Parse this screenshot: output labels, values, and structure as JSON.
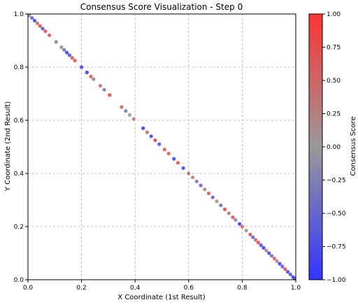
{
  "chart_data": {
    "type": "scatter",
    "title": "Consensus Score Visualization - Step 0",
    "xlabel": "X Coordinate (1st Result)",
    "ylabel": "Y Coordinate (2nd Result)",
    "xlim": [
      0.0,
      1.0
    ],
    "ylim": [
      0.0,
      1.0
    ],
    "xticks": [
      "0.0",
      "0.2",
      "0.4",
      "0.6",
      "0.8",
      "1.0"
    ],
    "yticks": [
      "0.0",
      "0.2",
      "0.4",
      "0.6",
      "0.8",
      "1.0"
    ],
    "grid": true,
    "colorbar": {
      "label": "Consensus Score",
      "range": [
        -1.0,
        1.0
      ],
      "ticks": [
        "1.00",
        "0.75",
        "0.50",
        "0.25",
        "0.00",
        "−0.25",
        "−0.50",
        "−0.75",
        "−1.00"
      ],
      "colors": {
        "low": "#3333ff",
        "mid": "#999999",
        "high": "#ff3333"
      }
    },
    "points": [
      {
        "x": 0.005,
        "y": 0.995,
        "score": 0.2
      },
      {
        "x": 0.015,
        "y": 0.985,
        "score": -0.6
      },
      {
        "x": 0.025,
        "y": 0.975,
        "score": -0.8
      },
      {
        "x": 0.035,
        "y": 0.965,
        "score": 0.5
      },
      {
        "x": 0.045,
        "y": 0.955,
        "score": 0.7
      },
      {
        "x": 0.055,
        "y": 0.945,
        "score": -0.7
      },
      {
        "x": 0.065,
        "y": 0.935,
        "score": 0.8
      },
      {
        "x": 0.08,
        "y": 0.92,
        "score": 0.6
      },
      {
        "x": 0.105,
        "y": 0.895,
        "score": -0.2
      },
      {
        "x": 0.125,
        "y": 0.875,
        "score": 0.1
      },
      {
        "x": 0.135,
        "y": 0.865,
        "score": -0.4
      },
      {
        "x": 0.145,
        "y": 0.855,
        "score": -0.9
      },
      {
        "x": 0.155,
        "y": 0.845,
        "score": -0.7
      },
      {
        "x": 0.165,
        "y": 0.835,
        "score": 0.6
      },
      {
        "x": 0.175,
        "y": 0.825,
        "score": 0.7
      },
      {
        "x": 0.2,
        "y": 0.8,
        "score": -0.8
      },
      {
        "x": 0.22,
        "y": 0.78,
        "score": -0.9
      },
      {
        "x": 0.235,
        "y": 0.765,
        "score": 0.6
      },
      {
        "x": 0.245,
        "y": 0.755,
        "score": -0.2
      },
      {
        "x": 0.27,
        "y": 0.73,
        "score": 0.4
      },
      {
        "x": 0.285,
        "y": 0.715,
        "score": -0.3
      },
      {
        "x": 0.305,
        "y": 0.695,
        "score": 0.8
      },
      {
        "x": 0.35,
        "y": 0.65,
        "score": 0.5
      },
      {
        "x": 0.365,
        "y": 0.635,
        "score": -0.3
      },
      {
        "x": 0.38,
        "y": 0.62,
        "score": 0.0
      },
      {
        "x": 0.395,
        "y": 0.605,
        "score": 0.3
      },
      {
        "x": 0.43,
        "y": 0.57,
        "score": -0.9
      },
      {
        "x": 0.445,
        "y": 0.555,
        "score": 0.4
      },
      {
        "x": 0.46,
        "y": 0.54,
        "score": -0.8
      },
      {
        "x": 0.475,
        "y": 0.525,
        "score": 0.8
      },
      {
        "x": 0.49,
        "y": 0.51,
        "score": -0.7
      },
      {
        "x": 0.51,
        "y": 0.49,
        "score": 0.7
      },
      {
        "x": 0.525,
        "y": 0.475,
        "score": 0.6
      },
      {
        "x": 0.545,
        "y": 0.455,
        "score": -0.8
      },
      {
        "x": 0.56,
        "y": 0.44,
        "score": 0.7
      },
      {
        "x": 0.58,
        "y": 0.42,
        "score": -0.8
      },
      {
        "x": 0.6,
        "y": 0.4,
        "score": 0.4
      },
      {
        "x": 0.615,
        "y": 0.385,
        "score": 0.3
      },
      {
        "x": 0.63,
        "y": 0.37,
        "score": -0.3
      },
      {
        "x": 0.645,
        "y": 0.355,
        "score": -0.5
      },
      {
        "x": 0.66,
        "y": 0.34,
        "score": 0.2
      },
      {
        "x": 0.675,
        "y": 0.325,
        "score": 0.6
      },
      {
        "x": 0.69,
        "y": 0.31,
        "score": -0.6
      },
      {
        "x": 0.705,
        "y": 0.295,
        "score": 0.1
      },
      {
        "x": 0.72,
        "y": 0.28,
        "score": -0.4
      },
      {
        "x": 0.735,
        "y": 0.265,
        "score": 0.8
      },
      {
        "x": 0.75,
        "y": 0.25,
        "score": 0.3
      },
      {
        "x": 0.765,
        "y": 0.235,
        "score": 0.7
      },
      {
        "x": 0.775,
        "y": 0.225,
        "score": -0.2
      },
      {
        "x": 0.79,
        "y": 0.21,
        "score": -0.9
      },
      {
        "x": 0.8,
        "y": 0.2,
        "score": 0.5
      },
      {
        "x": 0.815,
        "y": 0.185,
        "score": 0.0
      },
      {
        "x": 0.83,
        "y": 0.17,
        "score": 0.7
      },
      {
        "x": 0.84,
        "y": 0.16,
        "score": -0.5
      },
      {
        "x": 0.85,
        "y": 0.15,
        "score": 0.6
      },
      {
        "x": 0.86,
        "y": 0.14,
        "score": 0.8
      },
      {
        "x": 0.87,
        "y": 0.13,
        "score": -0.7
      },
      {
        "x": 0.88,
        "y": 0.12,
        "score": -0.9
      },
      {
        "x": 0.89,
        "y": 0.11,
        "score": 0.3
      },
      {
        "x": 0.9,
        "y": 0.1,
        "score": -0.8
      },
      {
        "x": 0.91,
        "y": 0.09,
        "score": -0.4
      },
      {
        "x": 0.92,
        "y": 0.08,
        "score": 0.5
      },
      {
        "x": 0.93,
        "y": 0.07,
        "score": 0.2
      },
      {
        "x": 0.94,
        "y": 0.06,
        "score": -0.9
      },
      {
        "x": 0.95,
        "y": 0.05,
        "score": -0.6
      },
      {
        "x": 0.96,
        "y": 0.04,
        "score": 0.7
      },
      {
        "x": 0.97,
        "y": 0.03,
        "score": -0.8
      },
      {
        "x": 0.98,
        "y": 0.02,
        "score": -0.7
      },
      {
        "x": 0.99,
        "y": 0.01,
        "score": -0.9
      },
      {
        "x": 0.995,
        "y": 0.005,
        "score": -0.8
      }
    ]
  }
}
